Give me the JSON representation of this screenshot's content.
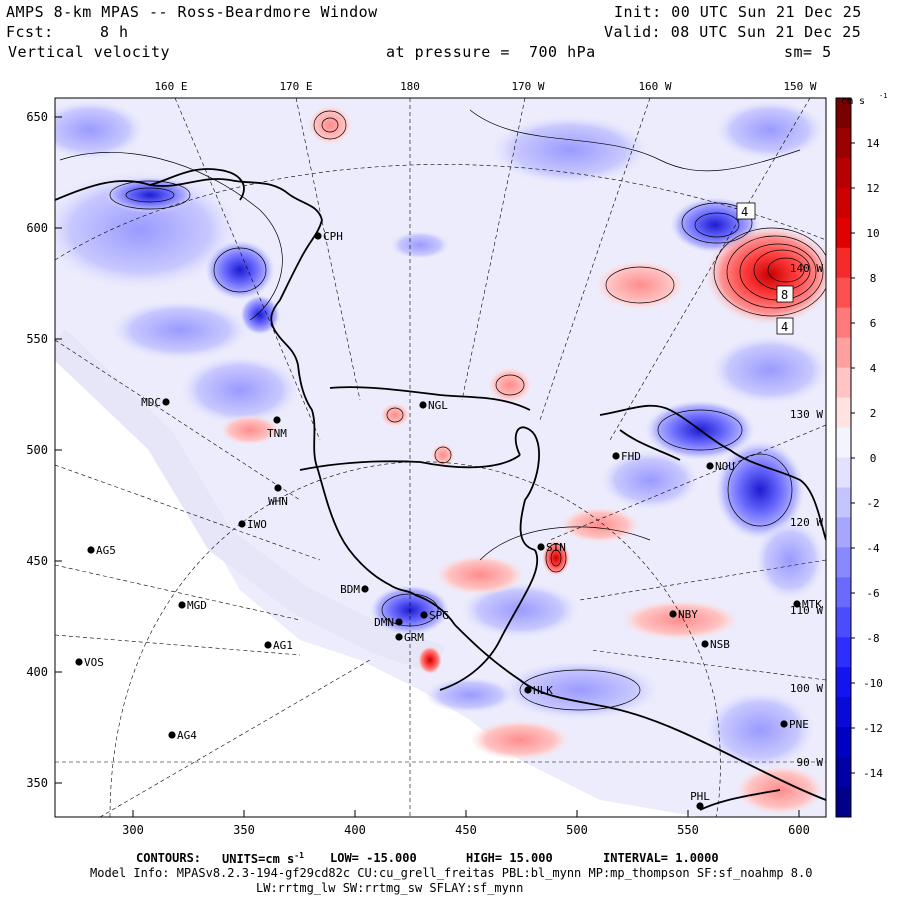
{
  "header": {
    "model_title": "AMPS 8-km MPAS -- Ross-Beardmore Window",
    "init": "Init: 00 UTC Sun 21 Dec 25",
    "fcst_label": "Fcst:",
    "fcst_value": "8 h",
    "valid": "Valid: 08 UTC Sun 21 Dec 25",
    "field": "Vertical velocity",
    "level": "at pressure =  700 hPa",
    "smooth": "sm= 5"
  },
  "colorbar": {
    "units": "cm s",
    "units_exp": "-1",
    "tick_labels": [
      "14",
      "12",
      "10",
      "8",
      "6",
      "4",
      "2",
      "0",
      "-2",
      "-4",
      "-6",
      "-8",
      "-10",
      "-12",
      "-14"
    ],
    "colors_top_to_bottom": [
      "#7a0000",
      "#9a0000",
      "#b80000",
      "#cc0000",
      "#e00000",
      "#f52a2a",
      "#ff5050",
      "#ff7a7a",
      "#ffa0a0",
      "#ffc4c4",
      "#ffe2e2",
      "#f4f4ff",
      "#e2e2ff",
      "#c4c4ff",
      "#a6a6ff",
      "#8888ff",
      "#6a6aff",
      "#4c4cff",
      "#2e2eff",
      "#1414f0",
      "#0a0ad8",
      "#0000c0",
      "#0000a4",
      "#000088"
    ]
  },
  "map": {
    "longitude_labels_top": [
      "160 E",
      "170 E",
      "180",
      "170 W",
      "160 W",
      "150 W"
    ],
    "longitude_labels_right": [
      "140 W",
      "130 W",
      "120 W",
      "110 W",
      "100 W",
      "90 W"
    ],
    "x_ticks": [
      "300",
      "350",
      "400",
      "450",
      "500",
      "550",
      "600"
    ],
    "y_ticks": [
      "650",
      "600",
      "550",
      "500",
      "450",
      "400",
      "350"
    ],
    "stations": [
      "CPH",
      "NGL",
      "MDC",
      "TNM",
      "WHN",
      "IWO",
      "AG5",
      "MGD",
      "VOS",
      "AG1",
      "AG4",
      "BDM",
      "SPG",
      "DMN",
      "GRM",
      "HLK",
      "SIN",
      "FHD",
      "NOU",
      "NBY",
      "NSB",
      "MTK",
      "PNE",
      "PHL"
    ],
    "contour_labels": [
      "4",
      "4",
      "8"
    ]
  },
  "footer": {
    "contours_label": "CONTOURS:",
    "units_label": "UNITS=cm s",
    "units_exp": "-1",
    "low": "LOW= -15.000",
    "high": "HIGH= 15.000",
    "interval": "INTERVAL= 1.0000",
    "model_info": "Model Info: MPASv8.2.3-194-gf29cd82c CU:cu_grell_freitas PBL:bl_mynn MP:mp_thompson SF:sf_noahmp 8.0",
    "physics": "LW:rrtmg_lw SW:rrtmg_sw SFLAY:sf_mynn"
  }
}
